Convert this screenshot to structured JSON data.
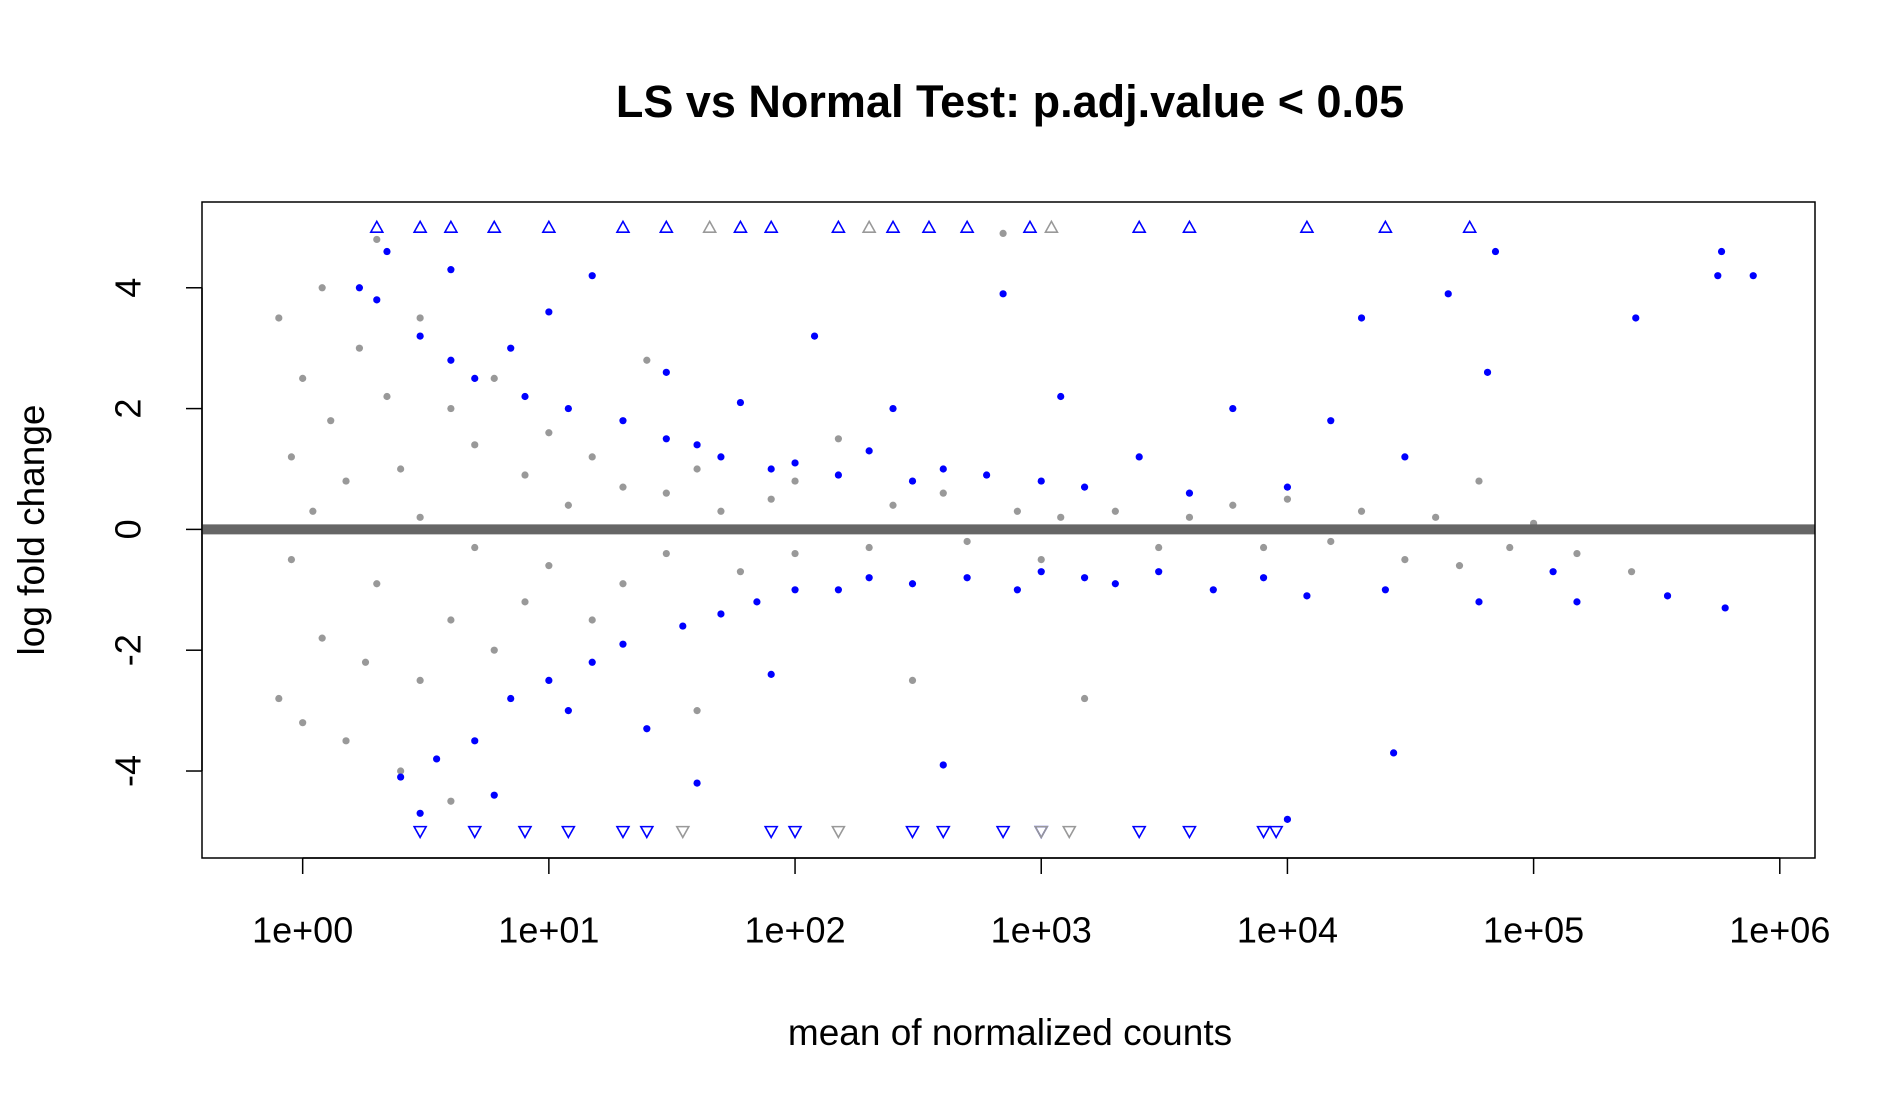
{
  "chart_data": {
    "type": "scatter",
    "title": "LS vs Normal Test: p.adj.value < 0.05",
    "x_label": "mean of normalized counts",
    "y_label": "log fold change",
    "xscale": "log",
    "xlim": [
      0.39,
      1390000
    ],
    "ylim": [
      -5.44,
      5.42
    ],
    "xticks": [
      {
        "value": 1,
        "label": "1e+00"
      },
      {
        "value": 10,
        "label": "1e+01"
      },
      {
        "value": 100,
        "label": "1e+02"
      },
      {
        "value": 1000,
        "label": "1e+03"
      },
      {
        "value": 10000,
        "label": "1e+04"
      },
      {
        "value": 100000,
        "label": "1e+05"
      },
      {
        "value": 1000000,
        "label": "1e+06"
      }
    ],
    "yticks": [
      -4,
      -2,
      0,
      2,
      4
    ],
    "hline": {
      "value": 0,
      "color": "#666666"
    },
    "series": [
      {
        "color": "#999999",
        "marker": "circle",
        "x": [
          0.8,
          0.8,
          0.9,
          0.9,
          1,
          1,
          1.1,
          1.2,
          1.2,
          1.3,
          1.5,
          1.5,
          1.7,
          1.8,
          2,
          2,
          2.2,
          2.5,
          2.5,
          3,
          3,
          3,
          4,
          4,
          4,
          5,
          5,
          6,
          6,
          8,
          8,
          10,
          10,
          12,
          15,
          15,
          20,
          20,
          25,
          30,
          30,
          40,
          40,
          50,
          60,
          80,
          100,
          100,
          150,
          200,
          250,
          300,
          400,
          500,
          700,
          800,
          1000,
          1200,
          1500,
          2000,
          3000,
          4000,
          6000,
          8000,
          10000,
          15000,
          20000,
          30000,
          40000,
          50000,
          60000,
          80000,
          100000,
          150000,
          250000
        ],
        "values": [
          3.5,
          -2.8,
          1.2,
          -0.5,
          2.5,
          -3.2,
          0.3,
          4.0,
          -1.8,
          1.8,
          -3.5,
          0.8,
          3.0,
          -2.2,
          4.8,
          -0.9,
          2.2,
          -4.0,
          1.0,
          3.5,
          -2.5,
          0.2,
          2.0,
          -1.5,
          -4.5,
          1.4,
          -0.3,
          2.5,
          -2.0,
          0.9,
          -1.2,
          1.6,
          -0.6,
          0.4,
          -1.5,
          1.2,
          0.7,
          -0.9,
          2.8,
          -0.4,
          0.6,
          1.0,
          -3.0,
          0.3,
          -0.7,
          0.5,
          -0.4,
          0.8,
          1.5,
          -0.3,
          0.4,
          -2.5,
          0.6,
          -0.2,
          4.9,
          0.3,
          -0.5,
          0.2,
          -2.8,
          0.3,
          -0.3,
          0.2,
          0.4,
          -0.3,
          0.5,
          -0.2,
          0.3,
          -0.5,
          0.2,
          -0.6,
          0.8,
          -0.3,
          0.1,
          -0.4,
          -0.7
        ]
      },
      {
        "color": "#0000ff",
        "marker": "circle",
        "x": [
          1.7,
          2,
          2.2,
          2.5,
          3,
          3,
          3.5,
          4,
          4,
          5,
          5,
          6,
          7,
          7,
          8,
          10,
          10,
          12,
          12,
          15,
          15,
          20,
          20,
          25,
          30,
          30,
          35,
          40,
          40,
          50,
          50,
          60,
          70,
          80,
          80,
          100,
          100,
          120,
          150,
          150,
          200,
          200,
          250,
          300,
          300,
          400,
          400,
          500,
          600,
          700,
          800,
          1000,
          1000,
          1200,
          1500,
          1500,
          2000,
          2500,
          3000,
          4000,
          5000,
          6000,
          8000,
          10000,
          10000,
          12000,
          15000,
          20000,
          25000,
          27000,
          30000,
          45000,
          60000,
          65000,
          70000,
          120000,
          150000,
          260000,
          350000,
          560000,
          580000,
          600000,
          780000
        ],
        "values": [
          4.0,
          3.8,
          4.6,
          -4.1,
          3.2,
          -4.7,
          -3.8,
          2.8,
          4.3,
          -3.5,
          2.5,
          -4.4,
          3.0,
          -2.8,
          2.2,
          -2.5,
          3.6,
          -3.0,
          2.0,
          -2.2,
          4.2,
          1.8,
          -1.9,
          -3.3,
          1.5,
          2.6,
          -1.6,
          -4.2,
          1.4,
          1.2,
          -1.4,
          2.1,
          -1.2,
          1.0,
          -2.4,
          1.1,
          -1.0,
          3.2,
          -1.0,
          0.9,
          1.3,
          -0.8,
          2.0,
          -0.9,
          0.8,
          1.0,
          -3.9,
          -0.8,
          0.9,
          3.9,
          -1.0,
          0.8,
          -0.7,
          2.2,
          -0.8,
          0.7,
          -0.9,
          1.2,
          -0.7,
          0.6,
          -1.0,
          2.0,
          -0.8,
          0.7,
          -4.8,
          -1.1,
          1.8,
          3.5,
          -1.0,
          -3.7,
          1.2,
          3.9,
          -1.2,
          2.6,
          4.6,
          -0.7,
          -1.2,
          3.5,
          -1.1,
          4.2,
          4.6,
          -1.3,
          4.2
        ]
      },
      {
        "color": "#0000ff",
        "marker": "triangle-up",
        "x": [
          2,
          3,
          4,
          6,
          10,
          20,
          30,
          60,
          80,
          150,
          250,
          350,
          500,
          900,
          2500,
          4000,
          12000,
          25000,
          55000
        ],
        "values": [
          5,
          5,
          5,
          5,
          5,
          5,
          5,
          5,
          5,
          5,
          5,
          5,
          5,
          5,
          5,
          5,
          5,
          5,
          5
        ]
      },
      {
        "color": "#0000ff",
        "marker": "triangle-down",
        "x": [
          3,
          5,
          8,
          12,
          20,
          25,
          80,
          100,
          300,
          400,
          700,
          1000,
          2500,
          4000,
          8000,
          9000
        ],
        "values": [
          -5,
          -5,
          -5,
          -5,
          -5,
          -5,
          -5,
          -5,
          -5,
          -5,
          -5,
          -5,
          -5,
          -5,
          -5,
          -5
        ]
      },
      {
        "color": "#999999",
        "marker": "triangle-up",
        "x": [
          45,
          200,
          1100
        ],
        "values": [
          5,
          5,
          5
        ]
      },
      {
        "color": "#999999",
        "marker": "triangle-down",
        "x": [
          35,
          150,
          1000,
          1300
        ],
        "values": [
          -5,
          -5,
          -5,
          -5
        ]
      }
    ]
  }
}
